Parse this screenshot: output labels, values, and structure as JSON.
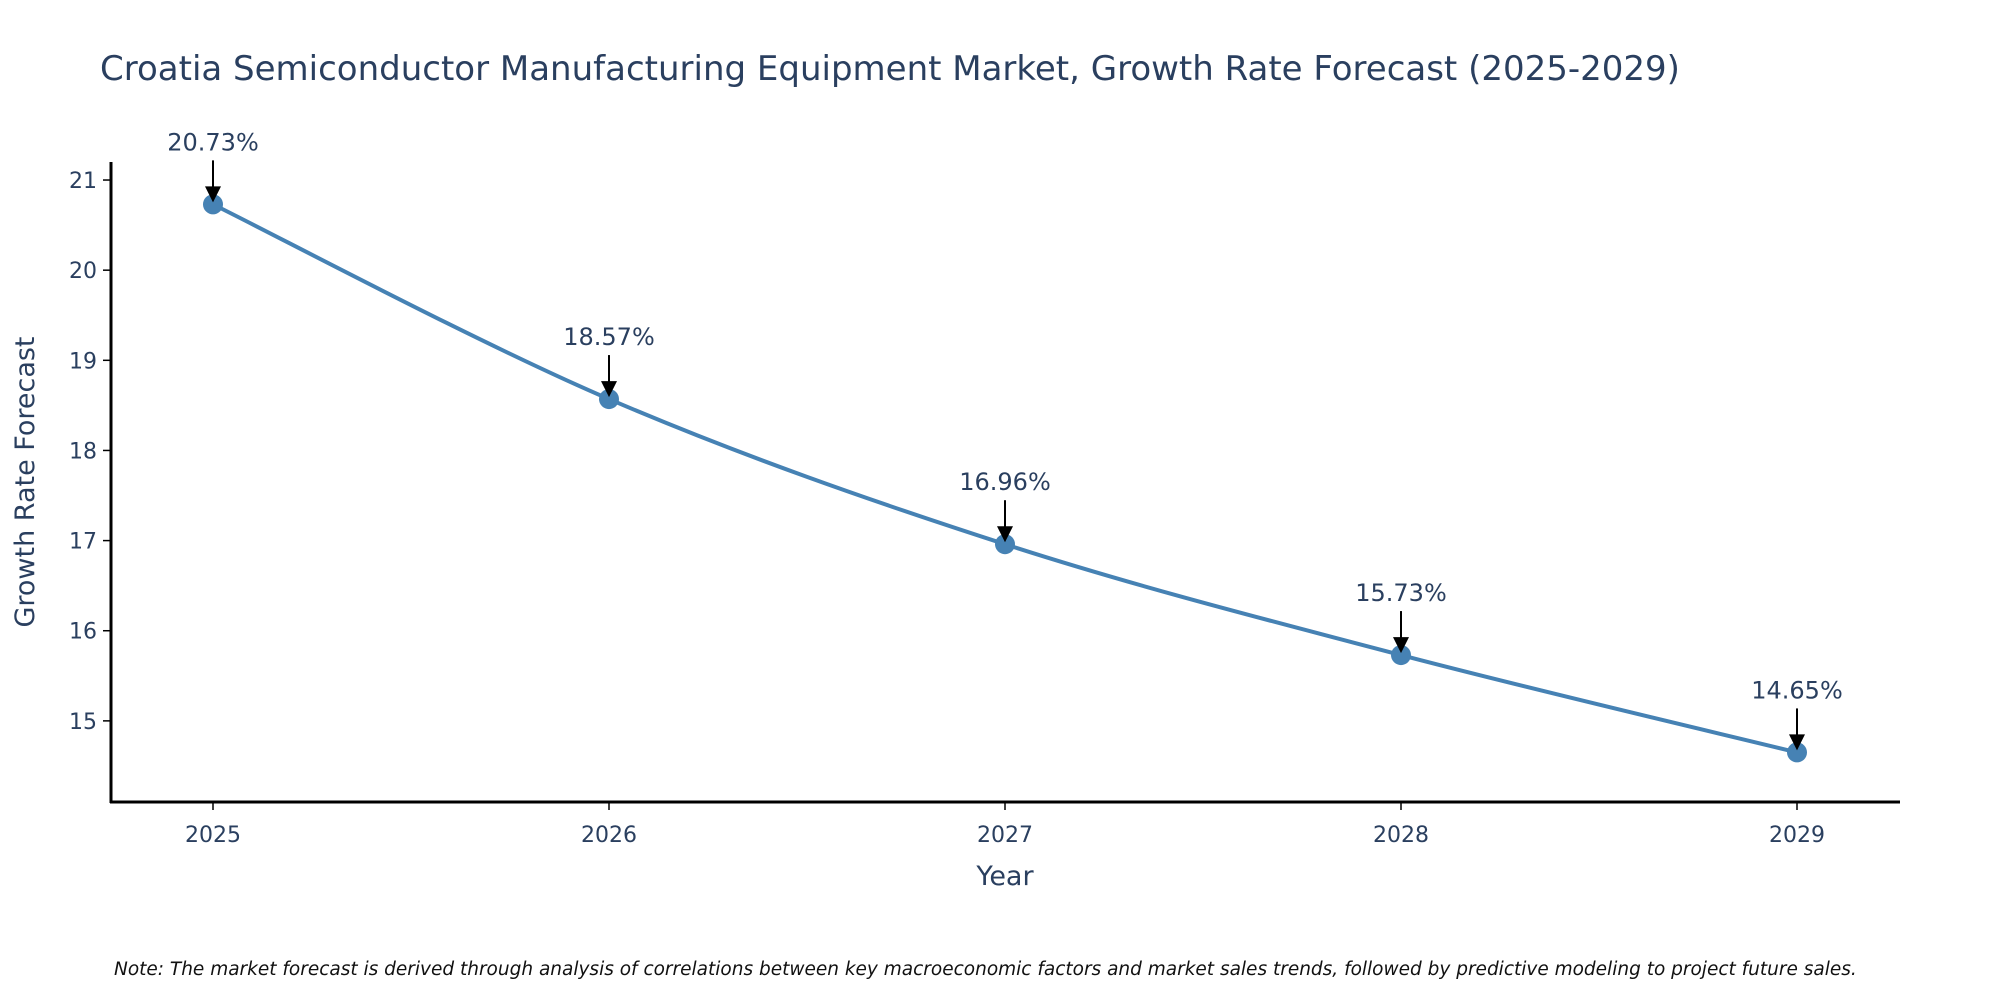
{
  "chart_data": {
    "type": "line",
    "title": "Croatia Semiconductor Manufacturing Equipment Market, Growth Rate Forecast (2025-2029)",
    "xlabel": "Year",
    "ylabel": "Growth Rate Forecast",
    "categories": [
      "2025",
      "2026",
      "2027",
      "2028",
      "2029"
    ],
    "series": [
      {
        "name": "Growth Rate Forecast",
        "values": [
          20.73,
          18.57,
          16.96,
          15.73,
          14.65
        ],
        "color": "#4682b4"
      }
    ],
    "data_labels": [
      "20.73%",
      "18.57%",
      "16.96%",
      "15.73%",
      "14.65%"
    ],
    "y_ticks": [
      15,
      16,
      17,
      18,
      19,
      20,
      21
    ],
    "ylim": [
      14.1,
      21.2
    ],
    "grid": false,
    "line_shape": "spline",
    "note": "Note: The market forecast is derived through analysis of correlations between key macroeconomic factors and market sales trends, followed by predictive modeling to project future sales."
  },
  "colors": {
    "line": "#4682b4",
    "text": "#2a3f5f",
    "axis": "#000000",
    "arrow": "#000000"
  }
}
